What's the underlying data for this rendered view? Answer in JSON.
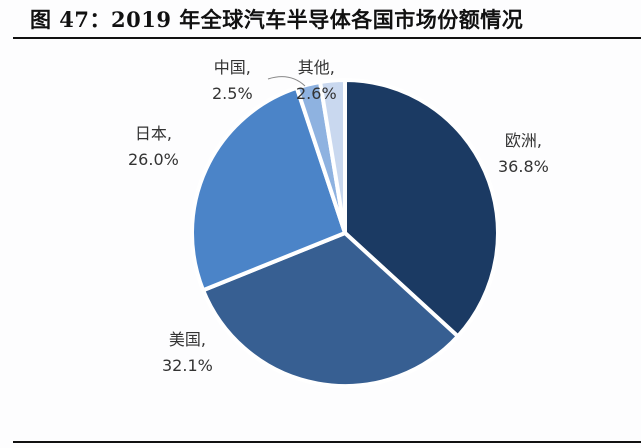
{
  "header": {
    "title": "图 47：2019 年全球汽车半导体各国市场份额情况"
  },
  "chart_data": {
    "type": "pie",
    "title": "图 47：2019 年全球汽车半导体各国市场份额情况",
    "categories": [
      "欧洲",
      "美国",
      "日本",
      "中国",
      "其他"
    ],
    "values": [
      36.8,
      32.1,
      26.0,
      2.5,
      2.6
    ],
    "unit": "%",
    "colors": [
      "#1b3a63",
      "#375f92",
      "#4b84c8",
      "#8eb2e0",
      "#c9d8ef"
    ],
    "start_angle_deg": 0,
    "direction": "clockwise",
    "labels": [
      {
        "name": "欧洲,",
        "value": "36.8%"
      },
      {
        "name": "美国,",
        "value": "32.1%"
      },
      {
        "name": "日本,",
        "value": "26.0%"
      },
      {
        "name": "中国,",
        "value": "2.5%"
      },
      {
        "name": "其他,",
        "value": "2.6%"
      }
    ]
  }
}
